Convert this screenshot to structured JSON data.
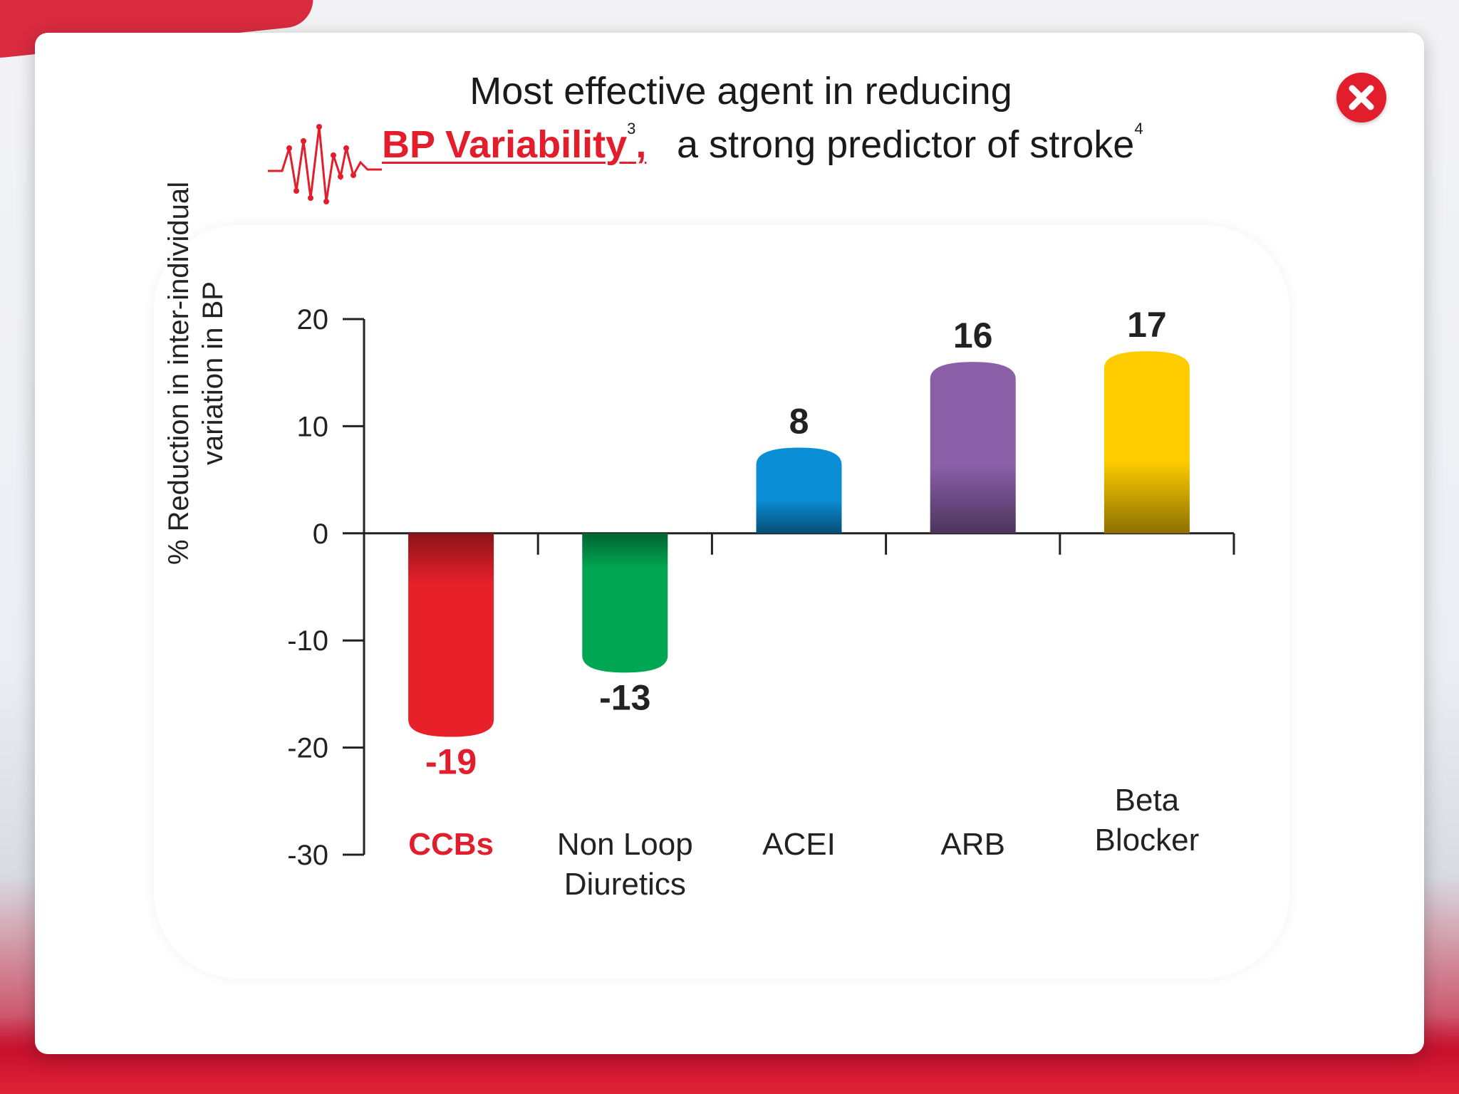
{
  "title": {
    "line1": "Most effective agent in reducing",
    "highlight": "BP Variability",
    "highlight_ref": "3",
    "line2_rest": "a strong predictor of stroke",
    "line2_ref": "4",
    "separator": ","
  },
  "close_icon": "close-icon",
  "colors": {
    "accent_red": "#e21d2c",
    "text": "#1a1a1a"
  },
  "chart_data": {
    "type": "bar",
    "categories": [
      "CCBs",
      "Non Loop Diuretics",
      "ACEI",
      "ARB",
      "Beta Blocker"
    ],
    "category_lines": [
      [
        "CCBs"
      ],
      [
        "Non Loop",
        "Diuretics"
      ],
      [
        "ACEI"
      ],
      [
        "ARB"
      ],
      [
        "Beta",
        "Blocker"
      ]
    ],
    "values": [
      -19,
      -13,
      8,
      16,
      17
    ],
    "value_labels": [
      "-19",
      "-13",
      "8",
      "16",
      "17"
    ],
    "bar_colors": [
      "#e8202a",
      "#00a651",
      "#0a8fd6",
      "#8a5fa8",
      "#ffcc00"
    ],
    "highlight_category": "CCBs",
    "ylabel_lines": [
      "% Reduction in inter-individual",
      "variation in BP"
    ],
    "yticks": [
      20,
      10,
      0,
      -10,
      -20,
      -30
    ],
    "ylim": [
      -30,
      20
    ],
    "grid": false
  }
}
